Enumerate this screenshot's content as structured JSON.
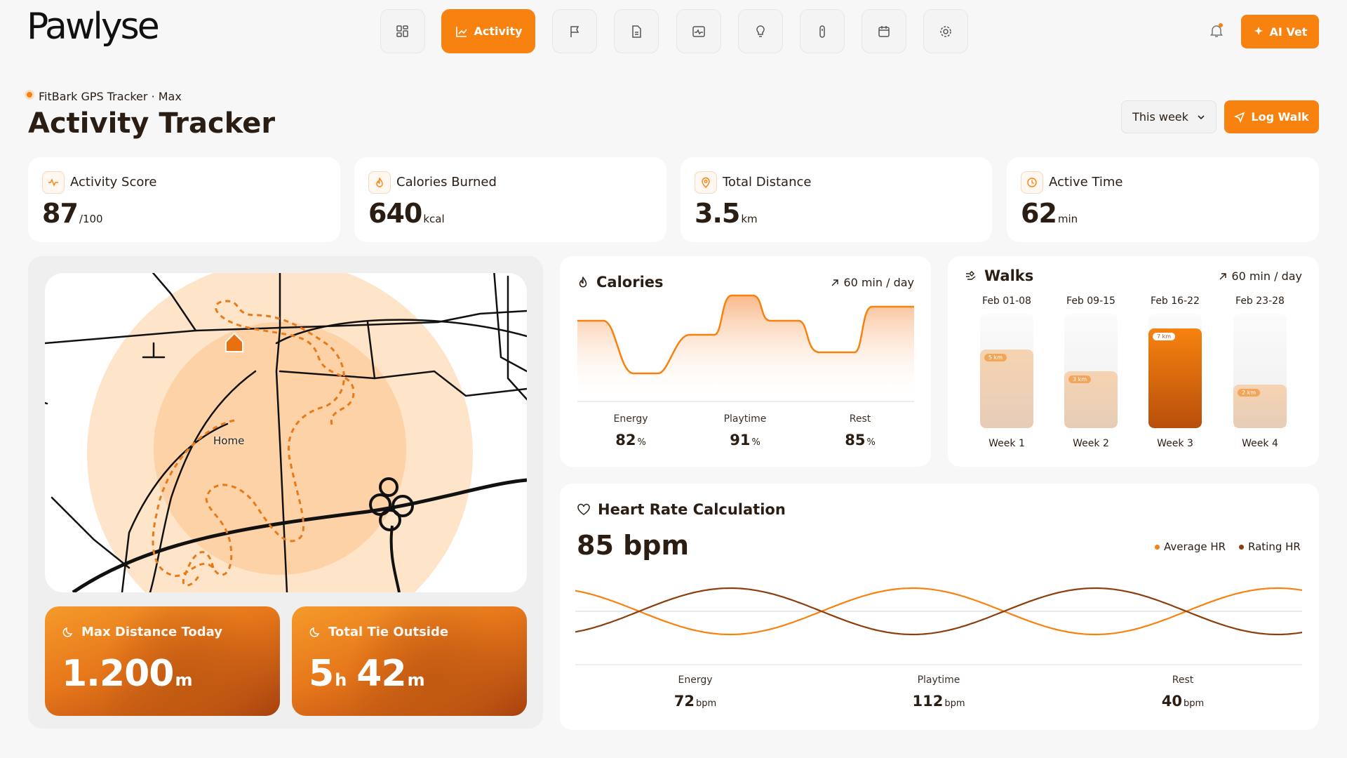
{
  "header": {
    "logo": "Pawlyse",
    "nav_active": "Activity",
    "ai_button": "AI Vet"
  },
  "page": {
    "device": "FitBark GPS Tracker · Max",
    "title": "Activity Tracker",
    "period": "This week",
    "log_button": "Log Walk"
  },
  "stats": [
    {
      "label": "Activity Score",
      "value": "87",
      "unit": "/100"
    },
    {
      "label": "Calories Burned",
      "value": "640",
      "unit": "kcal"
    },
    {
      "label": "Total Distance",
      "value": "3.5",
      "unit": "km"
    },
    {
      "label": "Active Time",
      "value": "62",
      "unit": "min"
    }
  ],
  "map": {
    "home": "Home"
  },
  "highlights": [
    {
      "label": "Max Distance Today",
      "parts": [
        {
          "value": "1.200",
          "unit": "m"
        }
      ]
    },
    {
      "label": "Total Tie Outside",
      "parts": [
        {
          "value": "5",
          "unit": "h"
        },
        {
          "value": "42",
          "unit": "m"
        }
      ]
    }
  ],
  "calories": {
    "title": "Calories",
    "goal": "60 min / day",
    "metrics": [
      {
        "label": "Energy",
        "value": "82",
        "unit": "%"
      },
      {
        "label": "Playtime",
        "value": "91",
        "unit": "%"
      },
      {
        "label": "Rest",
        "value": "85",
        "unit": "%"
      }
    ]
  },
  "walks": {
    "title": "Walks",
    "goal": "60 min / day",
    "weeks": [
      {
        "range": "Feb 01-08",
        "label": "Week 1",
        "distance": "5 km"
      },
      {
        "range": "Feb 09-15",
        "label": "Week 2",
        "distance": "3 km"
      },
      {
        "range": "Feb 16-22",
        "label": "Week 3",
        "distance": "7 km"
      },
      {
        "range": "Feb 23-28",
        "label": "Week 4",
        "distance": "2 km"
      }
    ]
  },
  "heart_rate": {
    "title": "Heart Rate Calculation",
    "value": "85 bpm",
    "legend": [
      "Average HR",
      "Rating HR"
    ],
    "metrics": [
      {
        "label": "Energy",
        "value": "72",
        "unit": "bpm"
      },
      {
        "label": "Playtime",
        "value": "112",
        "unit": "bpm"
      },
      {
        "label": "Rest",
        "value": "40",
        "unit": "bpm"
      }
    ]
  }
}
